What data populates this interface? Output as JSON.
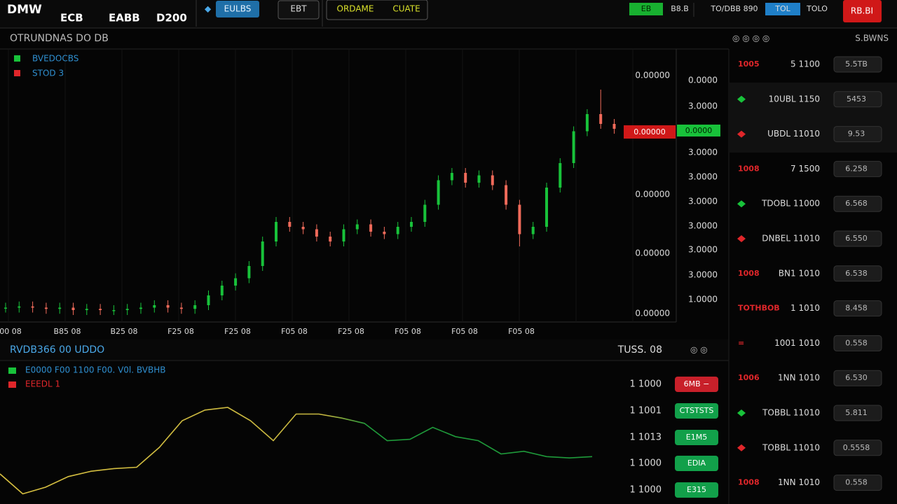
{
  "header": {
    "logo": "DMW",
    "stats": [
      "ECB",
      "EABB",
      "D200"
    ],
    "buttons": [
      "EULBS",
      "EBT"
    ],
    "modes": [
      "ORDAME",
      "CUATE"
    ],
    "right": [
      "EB",
      "B8.B",
      "TO/DBB 890",
      "TOL",
      "TOLO",
      "RB.BI"
    ]
  },
  "main_chart": {
    "title": "OTRUNDNAS DO DB",
    "toolbar": "S.BWNS",
    "legend": [
      {
        "name": "BVEDOCBS",
        "color": "#18c23a"
      },
      {
        "name": "STOD 3",
        "color": "#e0262a"
      }
    ],
    "open": [
      3,
      3,
      3.5,
      3,
      2.5,
      3,
      2,
      2.5,
      2,
      2,
      2.5,
      3,
      4,
      3,
      2.5,
      4,
      8,
      12,
      15,
      20,
      30,
      38,
      36,
      35,
      32,
      30,
      35,
      37,
      34,
      33,
      36,
      38,
      45,
      55,
      58,
      54,
      57,
      53,
      45,
      33,
      36,
      52,
      62,
      75,
      82,
      78
    ],
    "high": [
      5,
      5.5,
      5.5,
      5,
      5,
      5,
      4.5,
      4.5,
      4,
      4.5,
      5,
      6,
      6,
      5,
      6,
      10,
      14,
      17,
      22,
      32,
      40,
      40,
      38,
      37,
      34,
      37,
      39,
      39,
      36,
      38,
      40,
      47,
      57,
      60,
      60,
      59,
      59,
      55,
      47,
      38,
      54,
      64,
      77,
      84,
      92,
      80
    ],
    "low": [
      1,
      1,
      1,
      0.5,
      0.5,
      0,
      0,
      0,
      0,
      0,
      0.5,
      1,
      1,
      0.5,
      0.5,
      2,
      6,
      10,
      13,
      18,
      28,
      34,
      33,
      30,
      28,
      28,
      33,
      32,
      31,
      31,
      34,
      36,
      43,
      53,
      52,
      52,
      51,
      43,
      28,
      31,
      34,
      50,
      60,
      73,
      76,
      74
    ],
    "close": [
      3,
      3.5,
      3,
      2.5,
      3,
      2,
      2.5,
      2,
      2,
      2.5,
      3,
      4,
      3,
      2.5,
      4,
      8,
      12,
      15,
      20,
      30,
      38,
      36,
      35,
      32,
      30,
      35,
      37,
      34,
      33,
      36,
      38,
      45,
      55,
      58,
      54,
      57,
      53,
      45,
      33,
      36,
      52,
      62,
      75,
      82,
      78,
      76
    ],
    "ylim": [
      0,
      100
    ],
    "up_color": "#18c23a",
    "down_color": "#f06a5a",
    "inner_labels": [
      "0.00000",
      "0.00000",
      "0.00000",
      "0.00000"
    ],
    "axis_labels": [
      "0.0000",
      "3.0000",
      "3.0000",
      "3.0000",
      "3.0000",
      "3.0000",
      "3.0000",
      "3.0000",
      "1.0000"
    ],
    "price_tags": [
      "0.00000",
      "0.0000"
    ],
    "x_labels": [
      "00 08",
      "B85 08",
      "B25 08",
      "F25 08",
      "F25 08",
      "F05 08",
      "F25 08",
      "F05 08",
      "F05 08",
      "F05 08"
    ]
  },
  "lower_chart": {
    "title": "RVDB366 00 UDDO",
    "toolbar": "TUSS. 08",
    "legend": [
      {
        "name": "E0000 F00 1100 F00. V0l. BVBHB",
        "color": "#18c23a"
      },
      {
        "name": "EEEDL 1",
        "color": "#e0262a"
      }
    ],
    "values": [
      20,
      5,
      10,
      18,
      22,
      24,
      25,
      40,
      60,
      68,
      70,
      60,
      45,
      65,
      65,
      62,
      58,
      45,
      46,
      55,
      48,
      45,
      35,
      37,
      33,
      32,
      33
    ],
    "ylim": [
      0,
      100
    ],
    "axis_labels": [
      "1 1000",
      "1 1001",
      "1 1013",
      "1 1000",
      "1 1000"
    ],
    "badges": [
      {
        "text": "6MB −",
        "color": "#c8202a"
      },
      {
        "text": "CTSTSTS",
        "color": "#12a04a"
      },
      {
        "text": "E1M5",
        "color": "#12a04a"
      },
      {
        "text": "EDIA",
        "color": "#12a04a"
      },
      {
        "text": "E315",
        "color": "#12a04a"
      }
    ]
  },
  "order_book": [
    {
      "tag": "1005",
      "color": "#e0262a",
      "text": "5 1100",
      "badge": "5.5TB"
    },
    {
      "color": "#18c23a",
      "text": "10UBL 1150",
      "badge": "5453"
    },
    {
      "color": "#e0262a",
      "text": "UBDL 11010",
      "badge": "9.53"
    },
    {
      "tag": "1008",
      "color": "#e0262a",
      "text": "7 1500",
      "badge": "6.258"
    },
    {
      "color": "#18c23a",
      "text": "TDOBL 11000",
      "badge": "6.568"
    },
    {
      "color": "#e0262a",
      "text": "DNBEL 11010",
      "badge": "6.550"
    },
    {
      "tag": "1008",
      "color": "#e0262a",
      "text": "BN1 1010",
      "badge": "6.538"
    },
    {
      "tag": "TOTHBOB",
      "color": "#e0262a",
      "text": "1 1010",
      "badge": "8.458"
    },
    {
      "tag": "=",
      "color": "#e0262a",
      "text": "1001 1010",
      "badge": "0.558"
    },
    {
      "tag": "1006",
      "color": "#e0262a",
      "text": "1NN 1010",
      "badge": "6.530"
    },
    {
      "color": "#18c23a",
      "text": "TOBBL 11010",
      "badge": "5.811"
    },
    {
      "color": "#e0262a",
      "text": "TOBBL 11010",
      "badge": "0.5558"
    },
    {
      "tag": "1008",
      "color": "#e0262a",
      "text": "1NN 1010",
      "badge": "0.558"
    }
  ]
}
